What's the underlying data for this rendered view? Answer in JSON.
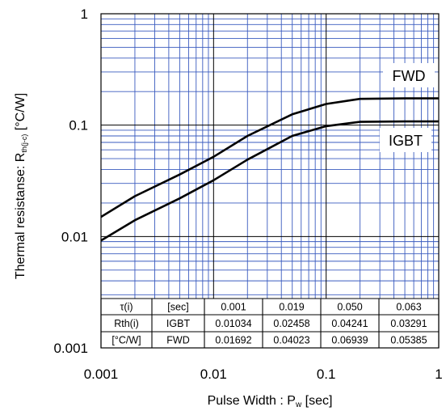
{
  "chart_data": {
    "type": "line",
    "title": "",
    "xlabel": "Pulse Width : P",
    "xlabel_sub": "w",
    "xlabel_suffix": " [sec]",
    "ylabel": "Thermal resistanse: R",
    "ylabel_sub": "th(j-c)",
    "ylabel_suffix": " [°C/W]",
    "x_scale": "log",
    "y_scale": "log",
    "xlim": [
      0.001,
      1
    ],
    "ylim": [
      0.001,
      1
    ],
    "grid": true,
    "grid_color": "#3a5bbf",
    "line_color": "#000000",
    "x_ticks": [
      "0.001",
      "0.01",
      "0.1",
      "1"
    ],
    "y_ticks": [
      "0.001",
      "0.01",
      "0.1",
      "1"
    ],
    "series": [
      {
        "name": "FWD",
        "x": [
          0.001,
          0.002,
          0.005,
          0.01,
          0.02,
          0.05,
          0.1,
          0.2,
          0.5,
          1
        ],
        "y": [
          0.015,
          0.023,
          0.036,
          0.052,
          0.08,
          0.125,
          0.155,
          0.172,
          0.174,
          0.174
        ]
      },
      {
        "name": "IGBT",
        "x": [
          0.001,
          0.002,
          0.005,
          0.01,
          0.02,
          0.05,
          0.1,
          0.2,
          0.5,
          1
        ],
        "y": [
          0.0092,
          0.014,
          0.022,
          0.032,
          0.049,
          0.08,
          0.098,
          0.107,
          0.108,
          0.108
        ]
      }
    ],
    "table": {
      "rows": [
        [
          "τ(i)",
          "[sec]",
          "0.001",
          "0.019",
          "0.050",
          "0.063"
        ],
        [
          "Rth(i)",
          "IGBT",
          "0.01034",
          "0.02458",
          "0.04241",
          "0.03291"
        ],
        [
          "[°C/W]",
          "FWD",
          "0.01692",
          "0.04023",
          "0.06939",
          "0.05385"
        ]
      ]
    }
  }
}
